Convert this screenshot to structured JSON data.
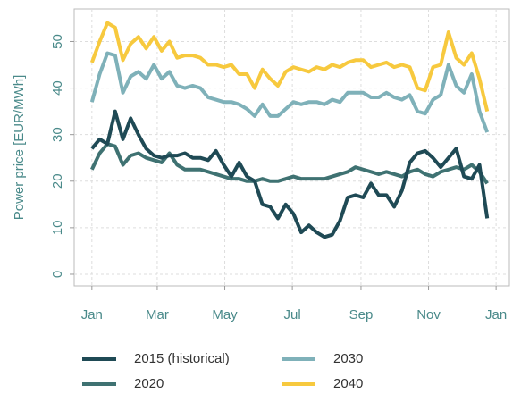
{
  "chart_data": {
    "type": "line",
    "y_label": "Power price [EUR/MWh]",
    "x": [
      0,
      7,
      14,
      21,
      28,
      35,
      42,
      49,
      56,
      63,
      70,
      77,
      84,
      91,
      98,
      105,
      112,
      119,
      126,
      133,
      140,
      147,
      154,
      161,
      168,
      175,
      182,
      189,
      196,
      203,
      210,
      217,
      224,
      231,
      238,
      245,
      252,
      259,
      266,
      273,
      280,
      287,
      294,
      301,
      308,
      315,
      322,
      329,
      336,
      343,
      350,
      357
    ],
    "xlim": [
      -16,
      377
    ],
    "xticks": [
      {
        "value": 0,
        "label": "Jan"
      },
      {
        "value": 59,
        "label": "Mar"
      },
      {
        "value": 120,
        "label": "May"
      },
      {
        "value": 181,
        "label": "Jul"
      },
      {
        "value": 243,
        "label": "Sep"
      },
      {
        "value": 304,
        "label": "Nov"
      },
      {
        "value": 365,
        "label": "Jan"
      }
    ],
    "ylim": [
      -2.5,
      57
    ],
    "yticks": [
      0,
      10,
      20,
      30,
      40,
      50
    ],
    "grid": true,
    "series": [
      {
        "name": "2015 (historical)",
        "color": "#1f4a55",
        "values": [
          27,
          29,
          28,
          35,
          29,
          33.5,
          30,
          27,
          25.5,
          25,
          25.5,
          25.5,
          26,
          25,
          25,
          24.5,
          26.5,
          23.5,
          21,
          24,
          21,
          20,
          15,
          14.5,
          12,
          15,
          13,
          9,
          10.5,
          9,
          8,
          8.5,
          11.5,
          16.5,
          17,
          16.5,
          19.5,
          17,
          17,
          14.5,
          18,
          24,
          26,
          26.5,
          25,
          23,
          25,
          27,
          21,
          20.5,
          23.5,
          12
        ]
      },
      {
        "name": "2030",
        "color": "#7fb1b9",
        "values": [
          37,
          43,
          47.5,
          47,
          39,
          42.5,
          43.5,
          42,
          45,
          42,
          43.5,
          40.5,
          40,
          40.5,
          40,
          38,
          37.5,
          37,
          37,
          36.5,
          35.5,
          34,
          36.5,
          34,
          34,
          35.5,
          37,
          36.5,
          37,
          37,
          36.5,
          37.5,
          37,
          39,
          39,
          39,
          38,
          38,
          39,
          38,
          37.5,
          38.5,
          35,
          34.5,
          37.5,
          38.5,
          45,
          40.5,
          39,
          43,
          35,
          30.5
        ]
      },
      {
        "name": "2020",
        "color": "#3f7272",
        "values": [
          22.5,
          26,
          28,
          27.5,
          23.5,
          25.5,
          26,
          25,
          24.5,
          24,
          26,
          23.5,
          22.5,
          22.5,
          22.5,
          22,
          21.5,
          21,
          20.5,
          20.5,
          20,
          20,
          20.5,
          20,
          20,
          20.5,
          21,
          20.5,
          20.5,
          20.5,
          20.5,
          21,
          21.5,
          22,
          23,
          22.5,
          22,
          21.5,
          22,
          21.5,
          21,
          22,
          22.5,
          21.5,
          21,
          22,
          22.5,
          23,
          22.5,
          23.5,
          22,
          19.5
        ]
      },
      {
        "name": "2040",
        "color": "#f7c93e",
        "values": [
          45.5,
          50,
          54,
          53,
          46,
          49.5,
          51,
          48.5,
          51,
          48,
          50,
          46.5,
          47,
          47,
          46.5,
          45,
          45,
          44.5,
          45,
          43,
          43,
          40,
          44,
          42,
          40.5,
          43.5,
          44.5,
          44,
          43.5,
          44.5,
          44,
          45,
          44.5,
          45.5,
          46,
          46,
          44.5,
          45,
          45.5,
          44.5,
          45,
          44.5,
          40,
          39.5,
          44.5,
          45,
          52,
          46.5,
          45,
          47.5,
          42,
          35
        ]
      }
    ]
  }
}
